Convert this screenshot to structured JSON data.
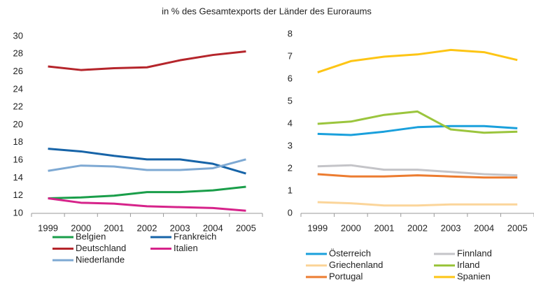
{
  "title": "in % des Gesamtexports der Länder des Euroraums",
  "chart_data": [
    {
      "type": "line",
      "categories": [
        "1999",
        "2000",
        "2001",
        "2002",
        "2003",
        "2004",
        "2005"
      ],
      "ylim": [
        10,
        30
      ],
      "yticks": [
        10,
        12,
        14,
        16,
        18,
        20,
        22,
        24,
        26,
        28,
        30
      ],
      "series": [
        {
          "name": "Belgien",
          "color": "#1a9e4a",
          "values": [
            11.7,
            11.8,
            12.0,
            12.4,
            12.4,
            12.6,
            13.0
          ]
        },
        {
          "name": "Frankreich",
          "color": "#1764a8",
          "values": [
            17.3,
            17.0,
            16.5,
            16.1,
            16.1,
            15.6,
            14.5
          ]
        },
        {
          "name": "Deutschland",
          "color": "#b5252b",
          "values": [
            26.6,
            26.2,
            26.4,
            26.5,
            27.3,
            27.9,
            28.3
          ]
        },
        {
          "name": "Italien",
          "color": "#d6238a",
          "values": [
            11.7,
            11.2,
            11.1,
            10.8,
            10.7,
            10.6,
            10.3
          ]
        },
        {
          "name": "Niederlande",
          "color": "#7ea9d3",
          "values": [
            14.8,
            15.4,
            15.3,
            14.9,
            14.9,
            15.1,
            16.1
          ]
        }
      ]
    },
    {
      "type": "line",
      "categories": [
        "1999",
        "2000",
        "2001",
        "2002",
        "2003",
        "2004",
        "2005"
      ],
      "ylim": [
        0,
        8
      ],
      "yticks": [
        0,
        1,
        2,
        3,
        4,
        5,
        6,
        7,
        8
      ],
      "series": [
        {
          "name": "Österreich",
          "color": "#1aa0dc",
          "values": [
            3.55,
            3.5,
            3.65,
            3.85,
            3.9,
            3.9,
            3.8
          ]
        },
        {
          "name": "Finnland",
          "color": "#c4c4c8",
          "values": [
            2.1,
            2.15,
            1.95,
            1.95,
            1.85,
            1.75,
            1.7
          ]
        },
        {
          "name": "Griechenland",
          "color": "#fbd59a",
          "values": [
            0.5,
            0.45,
            0.35,
            0.35,
            0.4,
            0.4,
            0.4
          ]
        },
        {
          "name": "Irland",
          "color": "#9bc53d",
          "values": [
            4.0,
            4.1,
            4.4,
            4.55,
            3.75,
            3.6,
            3.65
          ]
        },
        {
          "name": "Portugal",
          "color": "#ec7c30",
          "values": [
            1.75,
            1.65,
            1.65,
            1.7,
            1.65,
            1.6,
            1.6
          ]
        },
        {
          "name": "Spanien",
          "color": "#fdc515",
          "values": [
            6.3,
            6.8,
            7.0,
            7.1,
            7.3,
            7.2,
            6.85
          ]
        }
      ]
    }
  ]
}
